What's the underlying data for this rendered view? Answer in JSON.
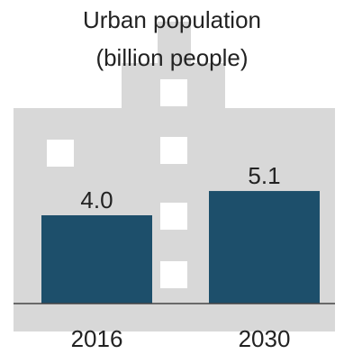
{
  "chart_data": {
    "type": "bar",
    "title_lines": [
      "Urban population",
      "(billion people)"
    ],
    "categories": [
      "2016",
      "2030"
    ],
    "values": [
      4.0,
      5.1
    ],
    "value_labels": [
      "4.0",
      "5.1"
    ],
    "ylim": [
      0,
      7
    ],
    "grid": false,
    "legend": "none",
    "colors": {
      "bar": "#1d4f6b",
      "building": "#d8d8d8",
      "window": "#ffffff",
      "axis": "#444444",
      "text": "#222222"
    },
    "background_icon": "building-silhouette-icon"
  }
}
